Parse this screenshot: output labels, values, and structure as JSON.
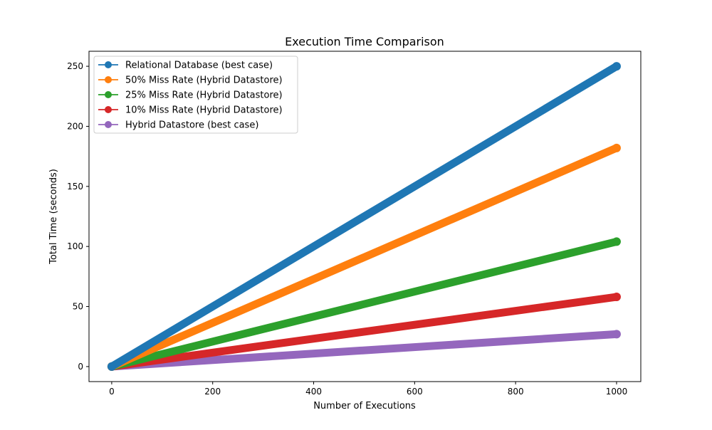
{
  "chart_data": {
    "type": "line",
    "title": "Execution Time Comparison",
    "xlabel": "Number of Executions",
    "ylabel": "Total Time (seconds)",
    "xlim": [
      -45,
      1048
    ],
    "ylim": [
      -12.5,
      262.5
    ],
    "xticks": [
      0,
      200,
      400,
      600,
      800,
      1000
    ],
    "yticks": [
      0,
      50,
      100,
      150,
      200,
      250
    ],
    "grid": false,
    "legend_position": "upper-left",
    "x": [
      0,
      1000
    ],
    "series": [
      {
        "name": "Relational Database (best case)",
        "color": "#1f77b4",
        "values": [
          0,
          250
        ]
      },
      {
        "name": "50% Miss Rate (Hybrid Datastore)",
        "color": "#ff7f0e",
        "values": [
          0,
          182
        ]
      },
      {
        "name": "25% Miss Rate (Hybrid Datastore)",
        "color": "#2ca02c",
        "values": [
          0,
          104
        ]
      },
      {
        "name": "10% Miss Rate (Hybrid Datastore)",
        "color": "#d62728",
        "values": [
          0,
          58
        ]
      },
      {
        "name": "Hybrid Datastore (best case)",
        "color": "#9467bd",
        "values": [
          0,
          27
        ]
      }
    ]
  }
}
